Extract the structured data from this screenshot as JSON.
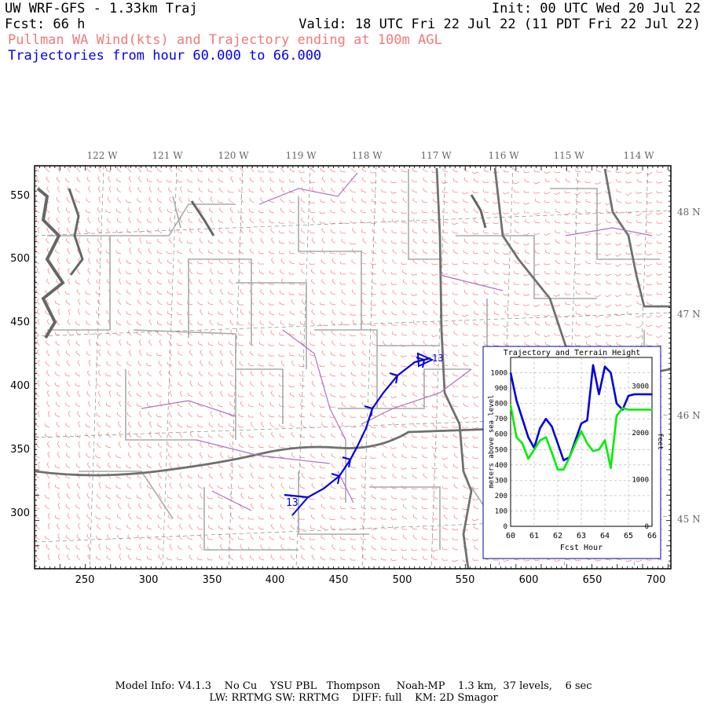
{
  "header": {
    "title": "UW WRF-GFS - 1.33km Traj",
    "init": "Init: 00 UTC Wed 20 Jul 22",
    "forecast": "Fcst:   66 h",
    "valid": "Valid: 18 UTC Fri 22 Jul 22 (11 PDT Fri 22 Jul 22)",
    "subtitle": "Pullman WA Wind(kts) and Trajectory ending at 100m AGL",
    "trajectory_range": "Trajectories from hour  60.000 to  66.000"
  },
  "map": {
    "top_longitude_labels": [
      "122 W",
      "121 W",
      "120 W",
      "119 W",
      "118 W",
      "117 W",
      "116 W",
      "115 W",
      "114 W"
    ],
    "right_latitude_labels": [
      "48 N",
      "47 N",
      "46 N",
      "45 N"
    ],
    "x_ticks": [
      "250",
      "300",
      "350",
      "400",
      "450",
      "500",
      "550",
      "600",
      "650",
      "700"
    ],
    "y_ticks": [
      "550",
      "500",
      "450",
      "400",
      "350",
      "300"
    ],
    "trajectory_start_label": "13",
    "trajectory_end_label": "13",
    "colors": {
      "wind_barbs": "#f08080",
      "trajectory": "#0000dd",
      "state_borders": "#707070",
      "county_lines": "#aaaaaa",
      "water": "#b070c0"
    }
  },
  "inset": {
    "title": "Trajectory and Terrain Height",
    "xlabel": "Fcst Hour",
    "ylabel_left": "meters above sea level",
    "ylabel_right": "feet",
    "x_ticks": [
      "60",
      "61",
      "62",
      "63",
      "64",
      "65",
      "66"
    ],
    "y_ticks_left": [
      "1000",
      "900",
      "800",
      "700",
      "600",
      "500",
      "400",
      "300",
      "200",
      "100",
      "0"
    ],
    "y_ticks_right": [
      "3000",
      "2000",
      "1000",
      "0"
    ]
  },
  "footer": {
    "line1": "Model Info: V4.1.3    No Cu    YSU PBL   Thompson     Noah-MP    1.3 km,  37 levels,    6 sec",
    "line2": "LW: RRTMG SW: RRTMG    DIFF: full    KM: 2D Smagor"
  },
  "chart_data": {
    "type": "line",
    "title": "Trajectory and Terrain Height",
    "xlabel": "Fcst Hour",
    "ylabel": "meters above sea level",
    "xlim": [
      60,
      66
    ],
    "ylim": [
      0,
      1100
    ],
    "grid": true,
    "series": [
      {
        "color": "#0000dd",
        "x": [
          60.0,
          60.25,
          60.5,
          60.75,
          61.0,
          61.25,
          61.5,
          61.75,
          62.0,
          62.25,
          62.5,
          62.75,
          63.0,
          63.25,
          63.5,
          63.75,
          64.0,
          64.25,
          64.5,
          64.75,
          65.0,
          65.25,
          65.5,
          65.75,
          66.0
        ],
        "values": [
          1000,
          820,
          700,
          580,
          510,
          640,
          700,
          650,
          540,
          430,
          450,
          560,
          670,
          690,
          1050,
          860,
          1040,
          1000,
          800,
          760,
          850,
          860,
          860,
          860,
          860
        ]
      },
      {
        "color": "#00ee00",
        "x": [
          60.0,
          60.25,
          60.5,
          60.75,
          61.0,
          61.25,
          61.5,
          61.75,
          62.0,
          62.25,
          62.5,
          62.75,
          63.0,
          63.25,
          63.5,
          63.75,
          64.0,
          64.25,
          64.5,
          64.75,
          65.0,
          65.25,
          65.5,
          65.75,
          66.0
        ],
        "values": [
          790,
          580,
          540,
          440,
          500,
          560,
          580,
          480,
          370,
          370,
          450,
          540,
          620,
          540,
          490,
          500,
          560,
          380,
          720,
          770,
          760,
          760,
          760,
          760,
          760
        ]
      }
    ]
  }
}
